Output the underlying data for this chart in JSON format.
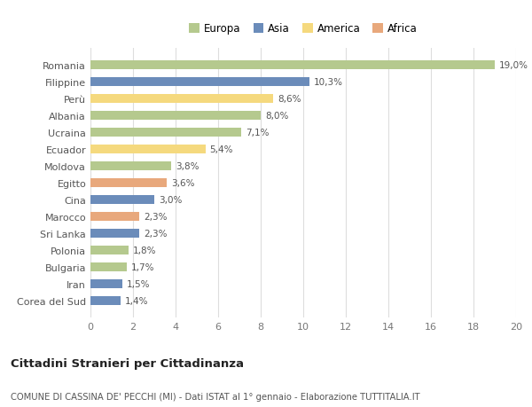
{
  "countries": [
    "Romania",
    "Filippine",
    "Perù",
    "Albania",
    "Ucraina",
    "Ecuador",
    "Moldova",
    "Egitto",
    "Cina",
    "Marocco",
    "Sri Lanka",
    "Polonia",
    "Bulgaria",
    "Iran",
    "Corea del Sud"
  ],
  "values": [
    19.0,
    10.3,
    8.6,
    8.0,
    7.1,
    5.4,
    3.8,
    3.6,
    3.0,
    2.3,
    2.3,
    1.8,
    1.7,
    1.5,
    1.4
  ],
  "labels": [
    "19,0%",
    "10,3%",
    "8,6%",
    "8,0%",
    "7,1%",
    "5,4%",
    "3,8%",
    "3,6%",
    "3,0%",
    "2,3%",
    "2,3%",
    "1,8%",
    "1,7%",
    "1,5%",
    "1,4%"
  ],
  "colors": [
    "#b5c98e",
    "#6b8cba",
    "#f5d97e",
    "#b5c98e",
    "#b5c98e",
    "#f5d97e",
    "#b5c98e",
    "#e8a87c",
    "#6b8cba",
    "#e8a87c",
    "#6b8cba",
    "#b5c98e",
    "#b5c98e",
    "#6b8cba",
    "#6b8cba"
  ],
  "legend_labels": [
    "Europa",
    "Asia",
    "America",
    "Africa"
  ],
  "legend_colors": [
    "#b5c98e",
    "#6b8cba",
    "#f5d97e",
    "#e8a87c"
  ],
  "xlim": [
    0,
    20
  ],
  "xticks": [
    0,
    2,
    4,
    6,
    8,
    10,
    12,
    14,
    16,
    18,
    20
  ],
  "title": "Cittadini Stranieri per Cittadinanza",
  "subtitle": "COMUNE DI CASSINA DE' PECCHI (MI) - Dati ISTAT al 1° gennaio - Elaborazione TUTTITALIA.IT",
  "bg_color": "#ffffff",
  "grid_color": "#dddddd",
  "bar_height": 0.55
}
